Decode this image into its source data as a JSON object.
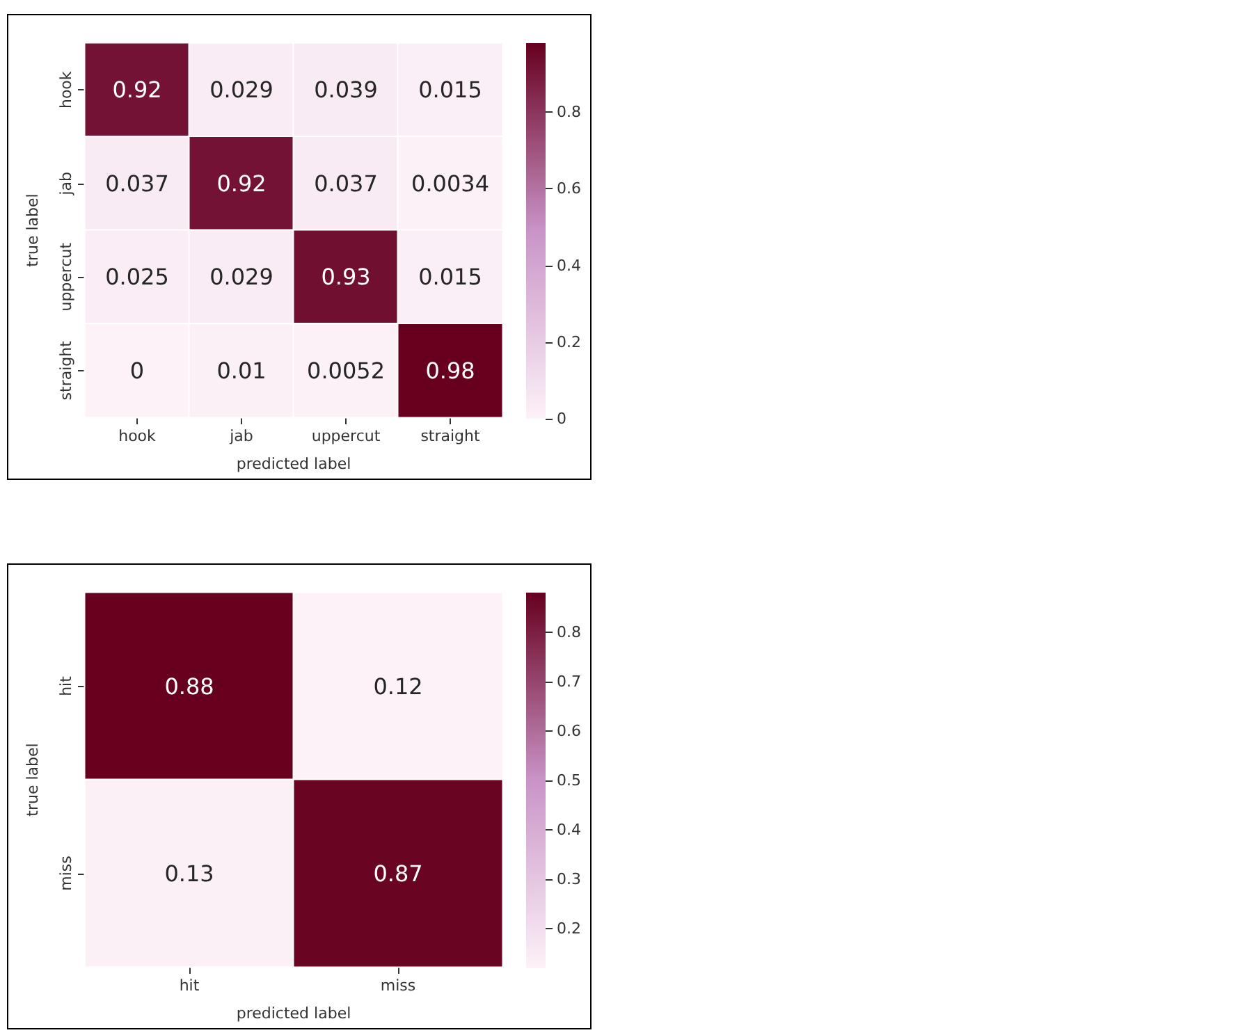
{
  "chart_data": [
    {
      "type": "heatmap",
      "xlabel": "predicted label",
      "ylabel": "true label",
      "categories": [
        "hook",
        "jab",
        "uppercut",
        "straight"
      ],
      "y_categories": [
        "hook",
        "jab",
        "uppercut",
        "straight"
      ],
      "cells": [
        [
          0.92,
          0.029,
          0.039,
          0.015
        ],
        [
          0.037,
          0.92,
          0.037,
          0.0034
        ],
        [
          0.025,
          0.029,
          0.93,
          0.015
        ],
        [
          0,
          0.01,
          0.0052,
          0.98
        ]
      ],
      "data_labels": true,
      "clim": [
        0,
        0.98
      ],
      "cticks": [
        0,
        0.2,
        0.4,
        0.6,
        0.8
      ],
      "colors": [
        "#fdf2f8",
        "#c994c7",
        "#67001f"
      ]
    },
    {
      "type": "heatmap",
      "xlabel": "predicted label",
      "ylabel": "true label",
      "categories": [
        "hit",
        "miss"
      ],
      "y_categories": [
        "hit",
        "miss"
      ],
      "cells": [
        [
          0.88,
          0.12
        ],
        [
          0.13,
          0.87
        ]
      ],
      "data_labels": true,
      "clim": [
        0.12,
        0.88
      ],
      "cticks": [
        0.2,
        0.3,
        0.4,
        0.5,
        0.6,
        0.7,
        0.8
      ],
      "colors": [
        "#fdf2f8",
        "#c994c7",
        "#67001f"
      ]
    }
  ]
}
